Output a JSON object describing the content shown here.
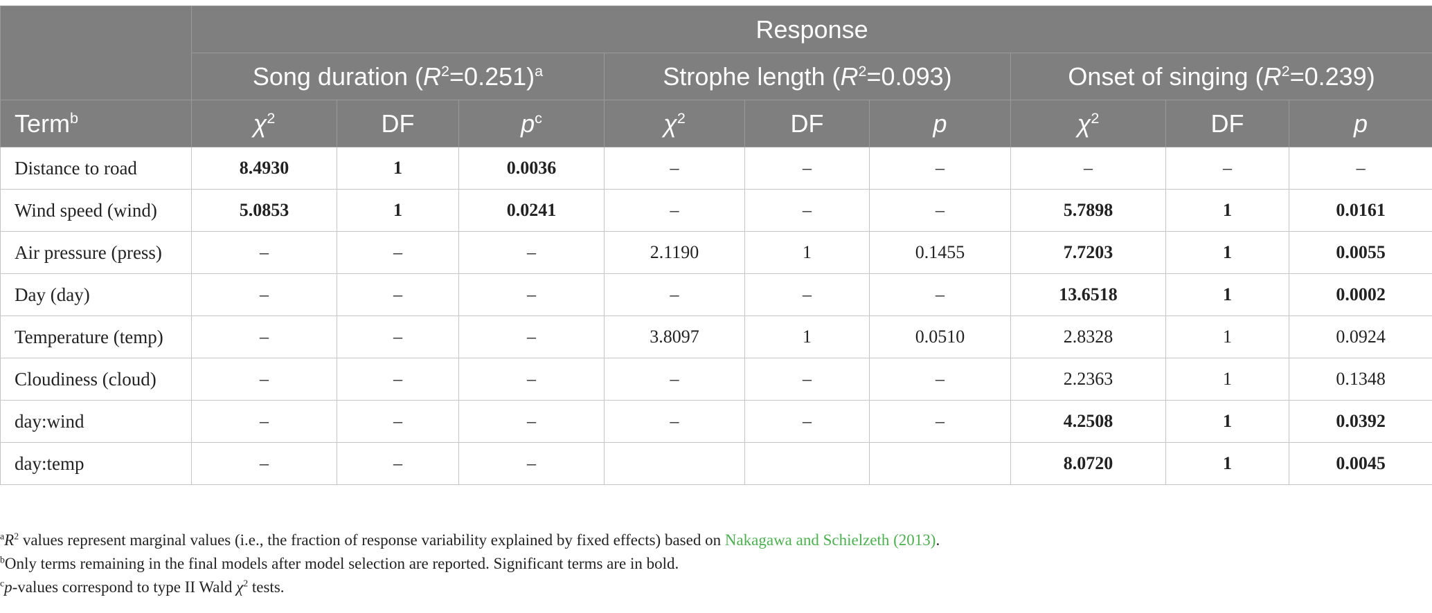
{
  "header": {
    "response": "Response",
    "groups": [
      {
        "name_prefix": "Song duration (",
        "r2_letter": "R",
        "r2_sup": "2",
        "r2_value": "=0.251)",
        "note_mark": "a"
      },
      {
        "name_prefix": "Strophe length (",
        "r2_letter": "R",
        "r2_sup": "2",
        "r2_value": "=0.093)",
        "note_mark": ""
      },
      {
        "name_prefix": "Onset of singing (",
        "r2_letter": "R",
        "r2_sup": "2",
        "r2_value": "=0.239)",
        "note_mark": ""
      }
    ],
    "term_label": "Term",
    "term_mark": "b",
    "chi_symbol": "χ",
    "chi_sup": "2",
    "df_label": "DF",
    "p_label": "p",
    "p_mark": "c"
  },
  "rows": [
    {
      "term": "Distance to road",
      "cells": [
        {
          "v": "8.4930",
          "b": true
        },
        {
          "v": "1",
          "b": true
        },
        {
          "v": "0.0036",
          "b": true
        },
        {
          "v": "–",
          "b": false
        },
        {
          "v": "–",
          "b": false
        },
        {
          "v": "–",
          "b": false
        },
        {
          "v": "–",
          "b": false
        },
        {
          "v": "–",
          "b": false
        },
        {
          "v": "–",
          "b": false
        }
      ]
    },
    {
      "term": "Wind speed (wind)",
      "cells": [
        {
          "v": "5.0853",
          "b": true
        },
        {
          "v": "1",
          "b": true
        },
        {
          "v": "0.0241",
          "b": true
        },
        {
          "v": "–",
          "b": false
        },
        {
          "v": "–",
          "b": false
        },
        {
          "v": "–",
          "b": false
        },
        {
          "v": "5.7898",
          "b": true
        },
        {
          "v": "1",
          "b": true
        },
        {
          "v": "0.0161",
          "b": true
        }
      ]
    },
    {
      "term": "Air pressure (press)",
      "cells": [
        {
          "v": "–",
          "b": false
        },
        {
          "v": "–",
          "b": false
        },
        {
          "v": "–",
          "b": false
        },
        {
          "v": "2.1190",
          "b": false
        },
        {
          "v": "1",
          "b": false
        },
        {
          "v": "0.1455",
          "b": false
        },
        {
          "v": "7.7203",
          "b": true
        },
        {
          "v": "1",
          "b": true
        },
        {
          "v": "0.0055",
          "b": true
        }
      ]
    },
    {
      "term": "Day (day)",
      "cells": [
        {
          "v": "–",
          "b": false
        },
        {
          "v": "–",
          "b": false
        },
        {
          "v": "–",
          "b": false
        },
        {
          "v": "–",
          "b": false
        },
        {
          "v": "–",
          "b": false
        },
        {
          "v": "–",
          "b": false
        },
        {
          "v": "13.6518",
          "b": true
        },
        {
          "v": "1",
          "b": true
        },
        {
          "v": "0.0002",
          "b": true
        }
      ]
    },
    {
      "term": "Temperature (temp)",
      "cells": [
        {
          "v": "–",
          "b": false
        },
        {
          "v": "–",
          "b": false
        },
        {
          "v": "–",
          "b": false
        },
        {
          "v": "3.8097",
          "b": false
        },
        {
          "v": "1",
          "b": false
        },
        {
          "v": "0.0510",
          "b": false
        },
        {
          "v": "2.8328",
          "b": false
        },
        {
          "v": "1",
          "b": false
        },
        {
          "v": "0.0924",
          "b": false
        }
      ]
    },
    {
      "term": "Cloudiness (cloud)",
      "cells": [
        {
          "v": "–",
          "b": false
        },
        {
          "v": "–",
          "b": false
        },
        {
          "v": "–",
          "b": false
        },
        {
          "v": "–",
          "b": false
        },
        {
          "v": "–",
          "b": false
        },
        {
          "v": "–",
          "b": false
        },
        {
          "v": "2.2363",
          "b": false
        },
        {
          "v": "1",
          "b": false
        },
        {
          "v": "0.1348",
          "b": false
        }
      ]
    },
    {
      "term": "day:wind",
      "cells": [
        {
          "v": "–",
          "b": false
        },
        {
          "v": "–",
          "b": false
        },
        {
          "v": "–",
          "b": false
        },
        {
          "v": "–",
          "b": false
        },
        {
          "v": "–",
          "b": false
        },
        {
          "v": "–",
          "b": false
        },
        {
          "v": "4.2508",
          "b": true
        },
        {
          "v": "1",
          "b": true
        },
        {
          "v": "0.0392",
          "b": true
        }
      ]
    },
    {
      "term": "day:temp",
      "cells": [
        {
          "v": "–",
          "b": false
        },
        {
          "v": "–",
          "b": false
        },
        {
          "v": "–",
          "b": false
        },
        {
          "v": "",
          "b": false
        },
        {
          "v": "",
          "b": false
        },
        {
          "v": "",
          "b": false
        },
        {
          "v": "8.0720",
          "b": true
        },
        {
          "v": "1",
          "b": true
        },
        {
          "v": "0.0045",
          "b": true
        }
      ]
    }
  ],
  "footnotes": {
    "a": {
      "mark": "a",
      "r": "R",
      "sup": "2",
      "text": " values represent marginal values (i.e., the fraction of response variability explained by fixed effects) based on ",
      "link": "Nakagawa and Schielzeth (2013)",
      "end": "."
    },
    "b": {
      "mark": "b",
      "text": "Only terms remaining in the final models after model selection are reported. Significant terms are in bold."
    },
    "c": {
      "mark": "c",
      "p": "p",
      "text": "-values correspond to type II Wald ",
      "chi": "χ",
      "sup": "2",
      "end": " tests."
    }
  },
  "colors": {
    "header_bg": "#7f7f7f",
    "header_text": "#ffffff",
    "link": "#4caf50",
    "grid": "#c4c4c4"
  }
}
